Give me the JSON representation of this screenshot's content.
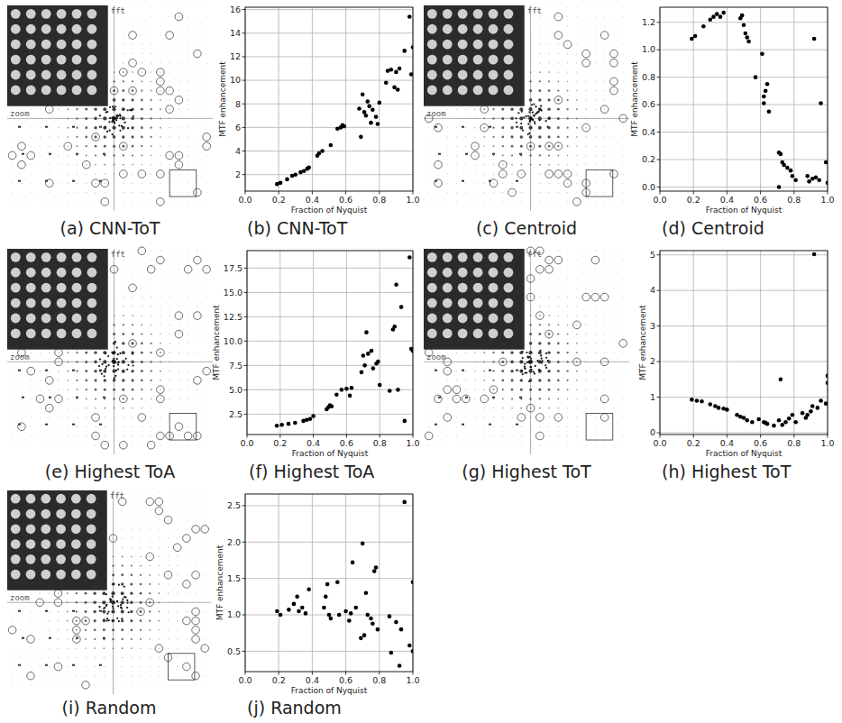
{
  "panels": [
    {
      "caption": "(a) CNN-ToT",
      "fft_label": "fft",
      "zoom_label": "zoom"
    },
    {
      "caption": "(c) Centroid",
      "fft_label": "fft",
      "zoom_label": "zoom"
    },
    {
      "caption": "(e) Highest ToA",
      "fft_label": "fft",
      "zoom_label": "zoom"
    },
    {
      "caption": "(g) Highest ToT",
      "fft_label": "fft",
      "zoom_label": "zoom"
    },
    {
      "caption": "(i) Random",
      "fft_label": "fft",
      "zoom_label": "zoom"
    }
  ],
  "chart_data": [
    {
      "type": "scatter",
      "title": "(b) CNN-ToT",
      "x_label": "Fraction of Nyquist",
      "y_label": "MTF enhancement",
      "x": [
        0.19,
        0.21,
        0.25,
        0.28,
        0.3,
        0.33,
        0.35,
        0.37,
        0.38,
        0.43,
        0.44,
        0.46,
        0.51,
        0.55,
        0.57,
        0.58,
        0.59,
        0.68,
        0.69,
        0.7,
        0.71,
        0.72,
        0.73,
        0.74,
        0.75,
        0.76,
        0.78,
        0.79,
        0.8,
        0.84,
        0.85,
        0.87,
        0.89,
        0.9,
        0.91,
        0.92,
        0.95,
        0.98,
        0.99,
        1.0
      ],
      "values": [
        1.2,
        1.3,
        1.6,
        1.9,
        2.0,
        2.2,
        2.3,
        2.5,
        2.6,
        3.6,
        3.8,
        4.0,
        4.5,
        5.9,
        6.0,
        6.2,
        6.1,
        7.6,
        5.2,
        8.8,
        7.3,
        7.0,
        8.2,
        7.8,
        6.4,
        7.5,
        6.9,
        6.3,
        8.1,
        9.8,
        10.8,
        10.9,
        9.4,
        10.7,
        9.2,
        11.0,
        12.5,
        15.4,
        10.5,
        12.8
      ],
      "xlim": [
        0,
        1
      ],
      "ylim": [
        0.6,
        16.2
      ],
      "xticks": [
        {
          "value": 0,
          "label": "0.0"
        },
        0.2,
        0.4,
        0.6,
        0.8,
        {
          "value": 1,
          "label": "1.0"
        }
      ],
      "yticks": [
        2,
        4,
        6,
        8,
        10,
        12,
        14,
        16
      ],
      "grid": true,
      "color": "#000000",
      "marker": "circle"
    },
    {
      "type": "scatter",
      "title": "(d) Centroid",
      "x_label": "Fraction of Nyquist",
      "y_label": "MTF enhancement",
      "x": [
        0.19,
        0.21,
        0.26,
        0.3,
        0.32,
        0.34,
        0.36,
        0.38,
        0.48,
        0.49,
        0.5,
        0.51,
        0.52,
        0.53,
        0.57,
        0.61,
        0.62,
        0.63,
        0.64,
        0.65,
        0.62,
        0.71,
        0.72,
        0.73,
        0.71,
        0.74,
        0.76,
        0.78,
        0.79,
        0.81,
        0.88,
        0.89,
        0.91,
        0.93,
        0.95,
        0.92,
        0.96,
        0.99,
        1.0
      ],
      "values": [
        1.08,
        1.1,
        1.17,
        1.22,
        1.24,
        1.26,
        1.24,
        1.27,
        1.23,
        1.25,
        1.18,
        1.12,
        1.09,
        1.06,
        0.8,
        0.97,
        0.66,
        0.7,
        0.75,
        0.55,
        0.61,
        0.25,
        0.24,
        0.18,
        0.0,
        0.16,
        0.14,
        0.12,
        0.08,
        0.05,
        0.08,
        0.04,
        0.06,
        0.07,
        0.05,
        1.08,
        0.61,
        0.18,
        0.03
      ],
      "xlim": [
        0,
        1
      ],
      "ylim": [
        -0.03,
        1.31
      ],
      "xticks": [
        {
          "value": 0,
          "label": "0.0"
        },
        0.2,
        0.4,
        0.6,
        0.8,
        {
          "value": 1,
          "label": "1.0"
        }
      ],
      "yticks": [
        {
          "value": 0,
          "label": "0.0"
        },
        0.2,
        0.4,
        0.6,
        0.8,
        {
          "value": 1,
          "label": "1.0"
        },
        1.2
      ],
      "grid": true,
      "color": "#000000",
      "marker": "circle"
    },
    {
      "type": "scatter",
      "title": "(f) Highest ToA",
      "x_label": "Fraction of Nyquist",
      "y_label": "MTF enhancement",
      "x": [
        0.18,
        0.21,
        0.25,
        0.29,
        0.34,
        0.36,
        0.38,
        0.4,
        0.48,
        0.49,
        0.5,
        0.51,
        0.54,
        0.57,
        0.6,
        0.62,
        0.63,
        0.69,
        0.7,
        0.71,
        0.72,
        0.73,
        0.75,
        0.76,
        0.78,
        0.79,
        0.8,
        0.86,
        0.88,
        0.89,
        0.9,
        0.91,
        0.93,
        0.95,
        0.98,
        0.99,
        1.0
      ],
      "values": [
        1.3,
        1.4,
        1.5,
        1.6,
        1.8,
        1.9,
        2.0,
        2.3,
        3.0,
        3.2,
        3.4,
        3.3,
        4.5,
        5.0,
        5.1,
        4.4,
        5.2,
        6.8,
        8.5,
        7.5,
        10.9,
        8.7,
        9.0,
        7.2,
        7.7,
        7.9,
        5.5,
        4.9,
        11.2,
        11.5,
        15.8,
        5.0,
        13.5,
        1.8,
        18.6,
        9.2,
        9.0
      ],
      "xlim": [
        0,
        1
      ],
      "ylim": [
        0.4,
        19.3
      ],
      "xticks": [
        {
          "value": 0,
          "label": "0.0"
        },
        0.2,
        0.4,
        0.6,
        0.8,
        {
          "value": 1,
          "label": "1.0"
        }
      ],
      "yticks": [
        2.5,
        {
          "value": 5,
          "label": "5.0"
        },
        7.5,
        {
          "value": 10,
          "label": "10.0"
        },
        12.5,
        {
          "value": 15,
          "label": "15.0"
        },
        17.5
      ],
      "grid": true,
      "color": "#000000",
      "marker": "circle"
    },
    {
      "type": "scatter",
      "title": "(h) Highest ToT",
      "x_label": "Fraction of Nyquist",
      "y_label": "MTF enhancement",
      "x": [
        0.19,
        0.22,
        0.25,
        0.3,
        0.33,
        0.35,
        0.38,
        0.4,
        0.46,
        0.48,
        0.5,
        0.52,
        0.55,
        0.59,
        0.62,
        0.64,
        0.63,
        0.68,
        0.72,
        0.71,
        0.73,
        0.75,
        0.77,
        0.79,
        0.81,
        0.85,
        0.87,
        0.88,
        0.9,
        0.91,
        0.92,
        0.94,
        0.96,
        0.99,
        1.0,
        1.0
      ],
      "values": [
        0.93,
        0.9,
        0.88,
        0.8,
        0.75,
        0.7,
        0.68,
        0.65,
        0.5,
        0.45,
        0.42,
        0.35,
        0.3,
        0.38,
        0.3,
        0.25,
        0.28,
        0.2,
        1.5,
        0.35,
        0.22,
        0.3,
        0.4,
        0.5,
        0.3,
        0.55,
        0.42,
        0.5,
        0.6,
        0.75,
        5.02,
        0.7,
        0.9,
        0.82,
        1.6,
        1.4
      ],
      "xlim": [
        0,
        1
      ],
      "ylim": [
        -0.05,
        5.12
      ],
      "xticks": [
        {
          "value": 0,
          "label": "0.0"
        },
        0.2,
        0.4,
        0.6,
        0.8,
        {
          "value": 1,
          "label": "1.0"
        }
      ],
      "yticks": [
        0,
        1,
        2,
        3,
        4,
        5
      ],
      "grid": true,
      "color": "#000000",
      "marker": "circle"
    },
    {
      "type": "scatter",
      "title": "(j) Random",
      "x_label": "Fraction of Nyquist",
      "y_label": "MTF enhancement",
      "x": [
        0.19,
        0.21,
        0.26,
        0.29,
        0.31,
        0.32,
        0.34,
        0.36,
        0.38,
        0.47,
        0.48,
        0.49,
        0.5,
        0.51,
        0.55,
        0.56,
        0.6,
        0.62,
        0.63,
        0.64,
        0.66,
        0.69,
        0.7,
        0.71,
        0.72,
        0.73,
        0.75,
        0.76,
        0.77,
        0.78,
        0.79,
        0.86,
        0.87,
        0.9,
        0.92,
        0.93,
        0.95,
        0.98,
        1.0,
        1.0
      ],
      "values": [
        1.05,
        1.0,
        1.07,
        1.15,
        1.25,
        1.05,
        1.1,
        1.02,
        1.35,
        1.1,
        1.25,
        1.42,
        1.0,
        0.95,
        1.45,
        1.0,
        1.05,
        0.92,
        1.02,
        1.72,
        1.1,
        0.68,
        1.98,
        0.72,
        1.3,
        1.0,
        0.95,
        0.88,
        1.6,
        1.65,
        0.8,
        0.98,
        0.48,
        0.9,
        0.3,
        0.8,
        2.55,
        0.58,
        0.5,
        1.45
      ],
      "xlim": [
        0,
        1
      ],
      "ylim": [
        0.22,
        2.66
      ],
      "xticks": [
        {
          "value": 0,
          "label": "0.0"
        },
        0.2,
        0.4,
        0.6,
        0.8,
        {
          "value": 1,
          "label": "1.0"
        }
      ],
      "yticks": [
        0.5,
        {
          "value": 1,
          "label": "1.0"
        },
        1.5,
        {
          "value": 2,
          "label": "2.0"
        },
        2.5
      ],
      "grid": true,
      "color": "#000000",
      "marker": "circle"
    }
  ]
}
